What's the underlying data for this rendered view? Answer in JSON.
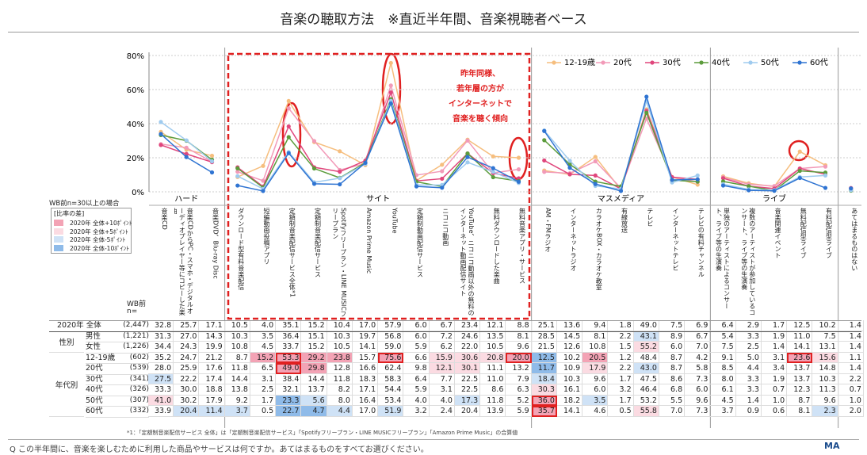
{
  "title": "音楽の聴取方法　※直近半年間、音楽視聴者ベース",
  "chart": {
    "ylim": [
      0,
      80
    ],
    "yticks": [
      {
        "value": 0,
        "label": "0%"
      },
      {
        "value": 20,
        "label": "20%"
      },
      {
        "value": 40,
        "label": "40%"
      },
      {
        "value": 60,
        "label": "60%"
      },
      {
        "value": 80,
        "label": "80%"
      }
    ],
    "annotation": [
      "昨年同様、",
      "若年層の方が",
      "インターネットで",
      "音楽を聴く傾向"
    ]
  },
  "groups": [
    {
      "label": "ハード",
      "columns": [
        "音楽CD",
        "音楽CDからPC・スマホ・デジタルオーディオプレイヤー等にコピーした楽曲",
        "音楽DVD、Blu-ray Disc"
      ]
    },
    {
      "label": "サイト",
      "columns": [
        "ダウンロード型有料音楽配信",
        "短編動画投稿アプリ",
        "定額制音楽配信サービス全体*1",
        "定額制音楽配信サービス",
        "Spotifyフリープラン・LINE MUSICフリープラン",
        "Amazon Prime Music",
        "YouTube",
        "定額制動画配信サービス",
        "ニコニコ動画",
        "YouTube、ニコニコ動画以外の無料のインターネット動画配信サイト",
        "無料ダウンロードした楽曲",
        "無料音楽アプリ・サービス"
      ]
    },
    {
      "label": "マスメディア",
      "columns": [
        "AM・FMラジオ",
        "インターネットラジオ",
        "カラオケBOX・カラオケ教室",
        "有線放送",
        "テレビ",
        "インターネットテレビ",
        "テレビの有料チャンネル"
      ]
    },
    {
      "label": "ライブ",
      "columns": [
        "単独のアーティストによるコンサート、ライブ等の生演奏",
        "複数のアーティストが参加しているコンサート、ライブ等の生演奏",
        "音楽関連イベント",
        "無料配信型ライブ",
        "有料配信型ライブ"
      ]
    },
    {
      "columns": [
        "あてはまるものはない"
      ]
    }
  ],
  "legend": {
    "note": "WB前n=30以上の場合",
    "title": "[比率の差]",
    "items": [
      {
        "label": "2020年 全体+10ﾎﾟｲﾝﾄ",
        "threshold": 10,
        "color": "#f3a3b5"
      },
      {
        "label": "2020年 全体+5ﾎﾟｲﾝﾄ",
        "threshold": 5,
        "color": "#fbdbe2"
      },
      {
        "label": "2020年 全体-5ﾎﾟｲﾝﾄ",
        "threshold": -5,
        "color": "#cfe2f6"
      },
      {
        "label": "2020年 全体-10ﾎﾟｲﾝﾄ",
        "threshold": -10,
        "color": "#8fbbe9"
      }
    ]
  },
  "table": {
    "n_header": [
      "WB前",
      "n="
    ],
    "total": {
      "label": "2020年 全体",
      "n": "(2,447)",
      "values": [
        32.8,
        25.7,
        17.1,
        10.5,
        4.0,
        35.1,
        15.2,
        10.4,
        17.0,
        57.9,
        6.0,
        6.7,
        23.4,
        12.1,
        8.8,
        25.1,
        13.6,
        9.4,
        1.8,
        49.0,
        7.5,
        6.9,
        6.4,
        2.9,
        1.7,
        12.5,
        10.2,
        1.4
      ]
    },
    "sections": [
      {
        "label": "性別",
        "rows": [
          {
            "label": "男性",
            "n": "(1,221)",
            "values": [
              31.3,
              27.0,
              14.3,
              10.3,
              3.5,
              36.4,
              15.1,
              10.3,
              19.7,
              56.8,
              6.0,
              7.2,
              24.6,
              13.5,
              8.1,
              28.5,
              14.5,
              8.1,
              2.2,
              43.1,
              8.9,
              6.7,
              5.4,
              3.3,
              1.9,
              11.0,
              7.5,
              1.4
            ]
          },
          {
            "label": "女性",
            "n": "(1,226)",
            "values": [
              34.4,
              24.3,
              19.9,
              10.8,
              4.5,
              33.7,
              15.2,
              10.5,
              14.1,
              59.0,
              5.9,
              6.2,
              22.0,
              10.5,
              9.6,
              21.5,
              12.6,
              10.8,
              1.5,
              55.2,
              6.0,
              7.0,
              7.5,
              2.5,
              1.4,
              14.1,
              13.1,
              1.4
            ]
          }
        ]
      },
      {
        "label": "年代別",
        "rows": [
          {
            "label": "12-19歳",
            "n": "(602)",
            "color": "#f6be7e",
            "values": [
              35.2,
              24.7,
              21.2,
              8.7,
              15.2,
              53.3,
              29.2,
              23.8,
              15.7,
              75.6,
              6.6,
              15.9,
              30.6,
              20.8,
              20.0,
              12.5,
              10.2,
              20.5,
              1.2,
              48.4,
              8.7,
              4.2,
              9.1,
              5.0,
              3.1,
              23.6,
              15.6,
              1.1
            ]
          },
          {
            "label": "20代",
            "n": "(539)",
            "color": "#f29ab8",
            "values": [
              28.0,
              25.9,
              17.6,
              11.8,
              6.5,
              49.0,
              29.8,
              12.8,
              16.6,
              62.4,
              9.8,
              12.1,
              30.1,
              11.1,
              13.2,
              11.7,
              10.9,
              17.9,
              2.2,
              43.0,
              8.7,
              5.8,
              8.5,
              4.4,
              3.4,
              13.7,
              14.8,
              1.4
            ]
          },
          {
            "label": "30代",
            "n": "(341)",
            "color": "#e0467c",
            "values": [
              27.5,
              22.2,
              17.4,
              14.4,
              3.1,
              38.4,
              14.4,
              11.8,
              18.3,
              58.3,
              6.4,
              7.7,
              22.5,
              11.0,
              7.9,
              18.4,
              10.3,
              9.6,
              1.7,
              47.5,
              8.6,
              7.3,
              8.0,
              3.3,
              1.9,
              13.7,
              10.3,
              2.2
            ]
          },
          {
            "label": "40代",
            "n": "(326)",
            "color": "#5c9c3c",
            "values": [
              33.3,
              30.0,
              18.8,
              13.8,
              2.5,
              32.1,
              13.7,
              8.2,
              17.1,
              54.4,
              5.9,
              3.1,
              22.5,
              8.6,
              6.3,
              30.3,
              16.1,
              6.0,
              3.2,
              46.4,
              6.8,
              6.0,
              6.1,
              3.3,
              0.7,
              12.3,
              11.3,
              0.7
            ]
          },
          {
            "label": "50代",
            "n": "(307)",
            "color": "#9fcbef",
            "values": [
              41.0,
              30.2,
              17.9,
              9.2,
              1.7,
              23.3,
              5.6,
              8.0,
              16.4,
              53.4,
              4.0,
              4.0,
              17.3,
              11.8,
              5.2,
              36.0,
              18.2,
              3.5,
              1.7,
              53.2,
              5.5,
              9.6,
              4.5,
              1.4,
              1.0,
              8.7,
              9.6,
              1.0
            ]
          },
          {
            "label": "60代",
            "n": "(332)",
            "color": "#2f74d2",
            "values": [
              33.9,
              20.4,
              11.4,
              3.7,
              0.5,
              22.7,
              4.7,
              4.4,
              17.0,
              51.9,
              3.2,
              2.4,
              20.4,
              13.9,
              5.9,
              35.7,
              14.1,
              4.6,
              0.5,
              55.8,
              7.0,
              7.3,
              3.7,
              0.9,
              0.6,
              8.1,
              2.3,
              2.0
            ]
          }
        ]
      }
    ]
  },
  "footnote": "*1：「定額制音楽配信サービス 全体」は「定額制音楽配信サービス」「Spotifyフリープラン・LINE MUSICフリープラン」「Amazon Prime Music」の合算値",
  "question": "Q この半年間に、音楽を楽しむために利用した商品やサービスは何ですか。あてはまるものをすべてお選びください。",
  "badge": "MA"
}
